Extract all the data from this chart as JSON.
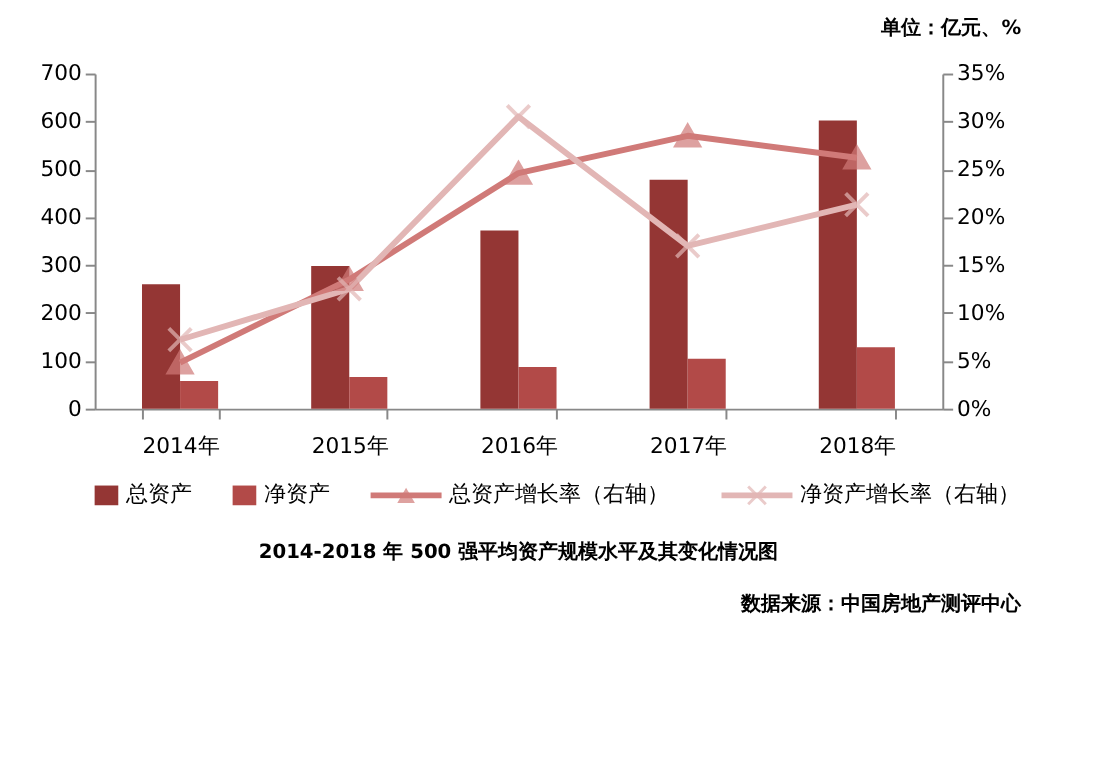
{
  "chart_data": {
    "type": "bar",
    "title": "2014-2018 年 500 强平均资产规模水平及其变化情况图",
    "annotations": [
      "单位：亿元、%",
      "数据来源：中国房地产测评中心"
    ],
    "categories": [
      "2014年",
      "2015年",
      "2016年",
      "2017年",
      "2018年"
    ],
    "series": [
      {
        "name": "总资产",
        "color": "#943634",
        "values": [
          260,
          298,
          372,
          478,
          602
        ]
      },
      {
        "name": "净资产",
        "color": "#b24a48",
        "values": [
          58,
          66,
          87,
          104,
          128
        ]
      },
      {
        "name": "总资产增长率（右轴）",
        "type": "line",
        "axis": "y2",
        "marker": "triangle",
        "color": "#d07a78",
        "values": [
          4.8,
          13.5,
          24.6,
          28.5,
          26.2
        ]
      },
      {
        "name": "净资产增长率（右轴）",
        "type": "line",
        "axis": "y2",
        "marker": "cross",
        "color": "#e2b6b5",
        "values": [
          7.2,
          12.5,
          30.5,
          17.0,
          21.3
        ]
      }
    ],
    "ylim": [
      0,
      700
    ],
    "yticks": [
      0,
      100,
      200,
      300,
      400,
      500,
      600,
      700
    ],
    "y2lim": [
      0,
      35
    ],
    "y2ticks": [
      {
        "value": 0,
        "label": "0%"
      },
      {
        "value": 5,
        "label": "5%"
      },
      {
        "value": 10,
        "label": "10%"
      },
      {
        "value": 15,
        "label": "15%"
      },
      {
        "value": 20,
        "label": "20%"
      },
      {
        "value": 25,
        "label": "25%"
      },
      {
        "value": 30,
        "label": "30%"
      },
      {
        "value": 35,
        "label": "35%"
      }
    ],
    "grid": false,
    "legend": "bottom"
  }
}
